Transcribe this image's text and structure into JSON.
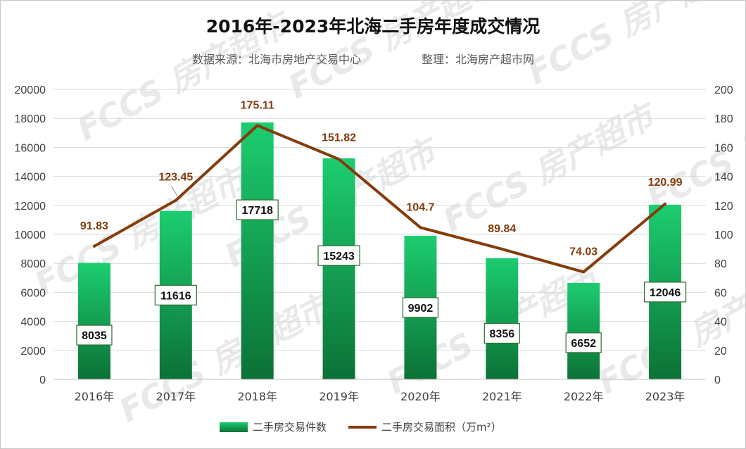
{
  "chart_data": {
    "type": "bar",
    "title": "2016年-2023年北海二手房年度成交情况",
    "subtitle": {
      "source": "数据来源：北海市房地产交易中心",
      "compiler": "整理：北海房产超市网"
    },
    "categories": [
      "2016年",
      "2017年",
      "2018年",
      "2019年",
      "2020年",
      "2021年",
      "2022年",
      "2023年"
    ],
    "series": [
      {
        "name": "二手房交易件数",
        "type": "bar",
        "axis": "left",
        "values": [
          8035,
          11616,
          17718,
          15243,
          9902,
          8356,
          6652,
          12046
        ],
        "labels": [
          "8035",
          "11616",
          "17718",
          "15243",
          "9902",
          "8356",
          "6652",
          "12046"
        ]
      },
      {
        "name": "二手房交易面积（万m²）",
        "type": "line",
        "axis": "right",
        "values": [
          91.83,
          123.45,
          175.11,
          151.82,
          104.7,
          89.84,
          74.03,
          120.99
        ],
        "labels": [
          "91.83",
          "123.45",
          "175.11",
          "151.82",
          "104.7",
          "89.84",
          "74.03",
          "120.99"
        ]
      }
    ],
    "y_left": {
      "range": [
        0,
        20000
      ],
      "ticks": [
        "0",
        "2000",
        "4000",
        "6000",
        "8000",
        "10000",
        "12000",
        "14000",
        "16000",
        "18000",
        "20000"
      ]
    },
    "y_right": {
      "range": [
        0,
        200
      ],
      "ticks": [
        "0",
        "20",
        "40",
        "60",
        "80",
        "100",
        "120",
        "140",
        "160",
        "180",
        "200"
      ]
    },
    "grid": true,
    "legend_position": "bottom",
    "watermark": "FCCS 房产超市"
  },
  "colors": {
    "bar_top": "#1ccd6f",
    "bar_bottom": "#0c7136",
    "line": "#843c0c",
    "line_label": "#843c0c",
    "bar_label_border": "#2e6b2e",
    "grid": "#d9d9d9"
  }
}
